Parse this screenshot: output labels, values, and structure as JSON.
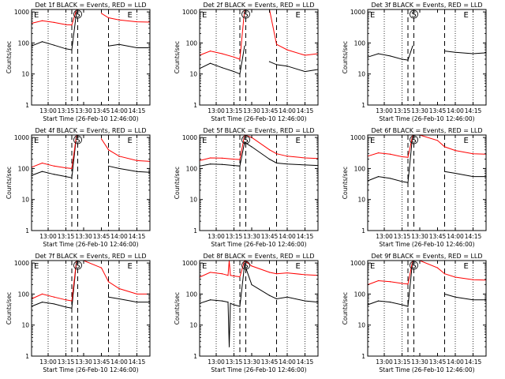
{
  "figure": {
    "x_axis_label": "Start Time (26-Feb-10 12:46:00)",
    "y_axis_label": "Counts/sec",
    "x_tick_labels": [
      "13:00",
      "13:15",
      "13:30",
      "13:45",
      "14:00",
      "14:15"
    ],
    "y_tick_labels": [
      "1",
      "10",
      "100",
      "1000"
    ],
    "marker_labels": [
      "E",
      "S",
      "E"
    ],
    "colors": {
      "events": "#000000",
      "lld": "#ff0000",
      "frame": "#000000",
      "background": "#ffffff"
    }
  },
  "chart_data": [
    {
      "type": "line",
      "title": "Det 1f BLACK = Events, RED = LLD",
      "xlabel": "Start Time (26-Feb-10 12:46:00)",
      "ylabel": "Counts/sec",
      "y_scale": "log",
      "xlim": [
        "12:46",
        "14:26"
      ],
      "ylim": [
        1,
        1200
      ],
      "markers": [
        {
          "label": "E",
          "x": "13:20"
        },
        {
          "label": "S",
          "x": "13:25"
        },
        {
          "label": "E",
          "x": "13:51"
        }
      ],
      "x": [
        "12:46",
        "12:55",
        "13:05",
        "13:15",
        "13:20",
        "13:24",
        "13:30",
        "13:45",
        "13:51",
        "14:00",
        "14:15",
        "14:26"
      ],
      "series": [
        {
          "name": "BLACK = Events",
          "color": "#000000",
          "values": [
            80,
            110,
            85,
            65,
            60,
            1000,
            null,
            null,
            80,
            90,
            70,
            70
          ]
        },
        {
          "name": "RED = LLD",
          "color": "#ff0000",
          "values": [
            430,
            520,
            460,
            390,
            380,
            1200,
            null,
            900,
            650,
            550,
            480,
            470
          ]
        }
      ]
    },
    {
      "type": "line",
      "title": "Det 2f BLACK = Events, RED = LLD",
      "xlabel": "Start Time (26-Feb-10 12:46:00)",
      "ylabel": "Counts/sec",
      "y_scale": "log",
      "xlim": [
        "12:46",
        "14:26"
      ],
      "ylim": [
        1,
        1200
      ],
      "markers": [
        {
          "label": "E",
          "x": "13:20"
        },
        {
          "label": "S",
          "x": "13:25"
        },
        {
          "label": "E",
          "x": "13:51"
        }
      ],
      "x": [
        "12:46",
        "12:55",
        "13:05",
        "13:15",
        "13:20",
        "13:24",
        "13:30",
        "13:45",
        "13:51",
        "14:00",
        "14:15",
        "14:26"
      ],
      "series": [
        {
          "name": "BLACK = Events",
          "color": "#000000",
          "values": [
            15,
            22,
            16,
            12,
            10,
            80,
            null,
            25,
            20,
            18,
            12,
            14
          ]
        },
        {
          "name": "RED = LLD",
          "color": "#ff0000",
          "values": [
            40,
            55,
            45,
            35,
            30,
            1200,
            1200,
            1200,
            90,
            60,
            40,
            45
          ]
        }
      ]
    },
    {
      "type": "line",
      "title": "Det 3f BLACK = Events, RED = LLD",
      "xlabel": "Start Time (26-Feb-10 12:46:00)",
      "ylabel": "Counts/sec",
      "y_scale": "log",
      "xlim": [
        "12:46",
        "14:26"
      ],
      "ylim": [
        1,
        1200
      ],
      "markers": [
        {
          "label": "E",
          "x": "13:20"
        },
        {
          "label": "S",
          "x": "13:25"
        },
        {
          "label": "E",
          "x": "13:51"
        }
      ],
      "x": [
        "12:46",
        "12:55",
        "13:05",
        "13:15",
        "13:20",
        "13:24",
        "13:30",
        "13:45",
        "13:51",
        "14:00",
        "14:15",
        "14:26"
      ],
      "series": [
        {
          "name": "BLACK = Events",
          "color": "#000000",
          "values": [
            35,
            45,
            38,
            30,
            28,
            80,
            null,
            null,
            55,
            50,
            45,
            48
          ]
        }
      ]
    },
    {
      "type": "line",
      "title": "Det 4f BLACK = Events, RED = LLD",
      "xlabel": "Start Time (26-Feb-10 12:46:00)",
      "ylabel": "Counts/sec",
      "y_scale": "log",
      "xlim": [
        "12:46",
        "14:26"
      ],
      "ylim": [
        1,
        1200
      ],
      "markers": [
        {
          "label": "E",
          "x": "13:20"
        },
        {
          "label": "S",
          "x": "13:25"
        },
        {
          "label": "E",
          "x": "13:51"
        }
      ],
      "x": [
        "12:46",
        "12:55",
        "13:05",
        "13:15",
        "13:20",
        "13:24",
        "13:30",
        "13:45",
        "13:51",
        "14:00",
        "14:15",
        "14:26"
      ],
      "series": [
        {
          "name": "BLACK = Events",
          "color": "#000000",
          "values": [
            60,
            80,
            65,
            55,
            50,
            1200,
            null,
            null,
            120,
            100,
            80,
            75
          ]
        },
        {
          "name": "RED = LLD",
          "color": "#ff0000",
          "values": [
            110,
            150,
            120,
            105,
            100,
            1200,
            null,
            900,
            400,
            250,
            180,
            170
          ]
        }
      ]
    },
    {
      "type": "line",
      "title": "Det 5f BLACK = Events, RED = LLD",
      "xlabel": "Start Time (26-Feb-10 12:46:00)",
      "ylabel": "Counts/sec",
      "y_scale": "log",
      "xlim": [
        "12:46",
        "14:26"
      ],
      "ylim": [
        1,
        1200
      ],
      "markers": [
        {
          "label": "E",
          "x": "13:20"
        },
        {
          "label": "S",
          "x": "13:25"
        },
        {
          "label": "E",
          "x": "13:51"
        }
      ],
      "x": [
        "12:46",
        "12:55",
        "13:05",
        "13:15",
        "13:20",
        "13:24",
        "13:30",
        "13:45",
        "13:51",
        "14:00",
        "14:15",
        "14:26"
      ],
      "series": [
        {
          "name": "BLACK = Events",
          "color": "#000000",
          "values": [
            120,
            140,
            135,
            125,
            120,
            700,
            500,
            200,
            150,
            140,
            130,
            125
          ]
        },
        {
          "name": "RED = LLD",
          "color": "#ff0000",
          "values": [
            180,
            220,
            215,
            200,
            195,
            1200,
            1000,
            400,
            300,
            250,
            220,
            210
          ]
        }
      ]
    },
    {
      "type": "line",
      "title": "Det 6f BLACK = Events, RED = LLD",
      "xlabel": "Start Time (26-Feb-10 12:46:00)",
      "ylabel": "Counts/sec",
      "y_scale": "log",
      "xlim": [
        "12:46",
        "14:26"
      ],
      "ylim": [
        1,
        1200
      ],
      "markers": [
        {
          "label": "E",
          "x": "13:20"
        },
        {
          "label": "S",
          "x": "13:25"
        },
        {
          "label": "E",
          "x": "13:51"
        }
      ],
      "x": [
        "12:46",
        "12:55",
        "13:05",
        "13:15",
        "13:20",
        "13:24",
        "13:30",
        "13:45",
        "13:51",
        "14:00",
        "14:15",
        "14:26"
      ],
      "series": [
        {
          "name": "BLACK = Events",
          "color": "#000000",
          "values": [
            40,
            55,
            48,
            38,
            35,
            1200,
            null,
            null,
            80,
            70,
            55,
            55
          ]
        },
        {
          "name": "RED = LLD",
          "color": "#ff0000",
          "values": [
            250,
            320,
            290,
            240,
            230,
            1200,
            1200,
            800,
            500,
            380,
            300,
            290
          ]
        }
      ]
    },
    {
      "type": "line",
      "title": "Det 7f BLACK = Events, RED = LLD",
      "xlabel": "Start Time (26-Feb-10 12:46:00)",
      "ylabel": "Counts/sec",
      "y_scale": "log",
      "xlim": [
        "12:46",
        "14:26"
      ],
      "ylim": [
        1,
        1200
      ],
      "markers": [
        {
          "label": "E",
          "x": "13:20"
        },
        {
          "label": "S",
          "x": "13:25"
        },
        {
          "label": "E",
          "x": "13:51"
        }
      ],
      "x": [
        "12:46",
        "12:55",
        "13:05",
        "13:15",
        "13:20",
        "13:24",
        "13:30",
        "13:45",
        "13:51",
        "14:00",
        "14:15",
        "14:26"
      ],
      "series": [
        {
          "name": "BLACK = Events",
          "color": "#000000",
          "values": [
            40,
            55,
            48,
            38,
            35,
            1200,
            null,
            null,
            80,
            70,
            55,
            55
          ]
        },
        {
          "name": "RED = LLD",
          "color": "#ff0000",
          "values": [
            70,
            100,
            80,
            65,
            60,
            1200,
            1200,
            700,
            250,
            150,
            100,
            100
          ]
        }
      ]
    },
    {
      "type": "line",
      "title": "Det 8f BLACK = Events, RED = LLD",
      "xlabel": "Start Time (26-Feb-10 12:46:00)",
      "ylabel": "Counts/sec",
      "y_scale": "log",
      "xlim": [
        "12:46",
        "14:26"
      ],
      "ylim": [
        1,
        1200
      ],
      "markers": [
        {
          "label": "E",
          "x": "13:20"
        },
        {
          "label": "S",
          "x": "13:25"
        },
        {
          "label": "E",
          "x": "13:51"
        }
      ],
      "x": [
        "12:46",
        "12:55",
        "13:05",
        "13:10",
        "13:11",
        "13:12",
        "13:15",
        "13:20",
        "13:24",
        "13:30",
        "13:45",
        "13:51",
        "14:00",
        "14:15",
        "14:26"
      ],
      "series": [
        {
          "name": "BLACK = Events",
          "color": "#000000",
          "values": [
            50,
            65,
            60,
            55,
            2,
            50,
            45,
            40,
            900,
            200,
            90,
            70,
            80,
            60,
            55
          ]
        },
        {
          "name": "RED = LLD",
          "color": "#ff0000",
          "values": [
            350,
            500,
            450,
            400,
            1200,
            400,
            380,
            360,
            1200,
            800,
            500,
            450,
            480,
            420,
            400
          ]
        }
      ]
    },
    {
      "type": "line",
      "title": "Det 9f BLACK = Events, RED = LLD",
      "xlabel": "Start Time (26-Feb-10 12:46:00)",
      "ylabel": "Counts/sec",
      "y_scale": "log",
      "xlim": [
        "12:46",
        "14:26"
      ],
      "ylim": [
        1,
        1200
      ],
      "markers": [
        {
          "label": "E",
          "x": "13:20"
        },
        {
          "label": "S",
          "x": "13:25"
        },
        {
          "label": "E",
          "x": "13:51"
        }
      ],
      "x": [
        "12:46",
        "12:55",
        "13:05",
        "13:15",
        "13:20",
        "13:24",
        "13:30",
        "13:45",
        "13:51",
        "14:00",
        "14:15",
        "14:26"
      ],
      "series": [
        {
          "name": "BLACK = Events",
          "color": "#000000",
          "values": [
            45,
            60,
            55,
            45,
            40,
            1200,
            null,
            null,
            100,
            80,
            65,
            65
          ]
        },
        {
          "name": "RED = LLD",
          "color": "#ff0000",
          "values": [
            200,
            270,
            250,
            220,
            210,
            1200,
            1200,
            700,
            450,
            350,
            290,
            280
          ]
        }
      ]
    }
  ]
}
